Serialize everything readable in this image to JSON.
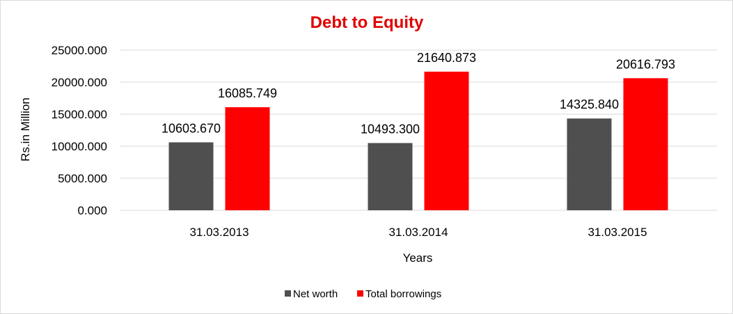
{
  "chart_data": {
    "type": "bar",
    "title": "Debt to Equity",
    "xlabel": "Years",
    "ylabel": "Rs.in Million",
    "categories": [
      "31.03.2013",
      "31.03.2014",
      "31.03.2015"
    ],
    "series": [
      {
        "name": "Net worth",
        "values": [
          10603.67,
          10493.3,
          14325.84
        ],
        "labels": [
          "10603.670",
          "10493.300",
          "14325.840"
        ],
        "color": "#4f4f4f"
      },
      {
        "name": "Total borrowings",
        "values": [
          16085.749,
          21640.873,
          20616.793
        ],
        "labels": [
          "16085.749",
          "21640.873",
          "20616.793"
        ],
        "color": "#ff0000"
      }
    ],
    "ylim": [
      0,
      25000
    ],
    "yticks": [
      0,
      5000,
      10000,
      15000,
      20000,
      25000
    ],
    "ytick_labels": [
      "0.000",
      "5000.000",
      "10000.000",
      "15000.000",
      "20000.000",
      "25000.000"
    ],
    "grid": true,
    "legend_position": "bottom",
    "title_color": "#e00000"
  }
}
